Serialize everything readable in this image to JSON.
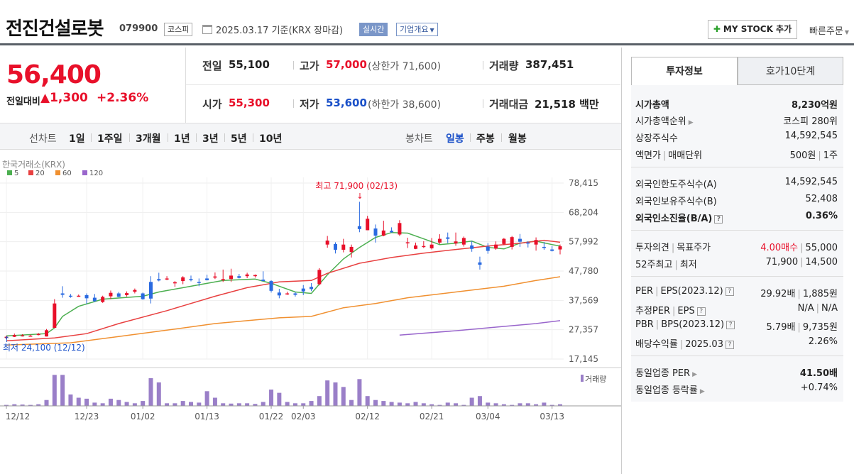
{
  "stock": {
    "name": "전진건설로봇",
    "code": "079900",
    "market": "코스피",
    "date": "2025.03.17 기준(KRX 장마감)",
    "realtime": "실시간",
    "company_overview": "기업개요",
    "my_stock": "MY STOCK 추가",
    "quick_order": "빠른주문"
  },
  "price": {
    "current": "56,400",
    "change_label": "전일대비",
    "change": "1,300",
    "change_pct": "+2.36%"
  },
  "info": {
    "prev_label": "전일",
    "prev": "55,100",
    "high_label": "고가",
    "high": "57,000",
    "upper_label": "상한가",
    "upper": "71,600",
    "volume_label": "거래량",
    "volume": "387,451",
    "open_label": "시가",
    "open": "55,300",
    "low_label": "저가",
    "low": "53,600",
    "lower_label": "하한가",
    "lower": "38,600",
    "amount_label": "거래대금",
    "amount": "21,518",
    "amount_unit": "백만"
  },
  "period": {
    "line_label": "선차트",
    "line_options": [
      "1일",
      "1주일",
      "3개월",
      "1년",
      "3년",
      "5년",
      "10년"
    ],
    "candle_label": "봉차트",
    "candle_options": [
      "일봉",
      "주봉",
      "월봉"
    ],
    "selected": "일봉"
  },
  "chart_data": {
    "type": "candlestick",
    "source": "한국거래소(KRX)",
    "ma_legend": [
      {
        "name": "5",
        "color": "#4caf50"
      },
      {
        "name": "20",
        "color": "#e84040"
      },
      {
        "name": "60",
        "color": "#f09030"
      },
      {
        "name": "120",
        "color": "#9966cc"
      }
    ],
    "x_ticks": [
      "12/12",
      "12/23",
      "01/02",
      "01/13",
      "01/22",
      "02/03",
      "02/12",
      "02/21",
      "03/04",
      "03/13"
    ],
    "y_ticks": [
      "78,415",
      "68,204",
      "57,992",
      "47,780",
      "37,569",
      "27,357",
      "17,145"
    ],
    "high_note": "최고 71,900 (02/13)",
    "low_note": "최저 24,100 (12/12)",
    "volume_label": "거래량",
    "candles": [
      [
        24600,
        25300,
        24100,
        24900
      ],
      [
        24900,
        26000,
        24800,
        25500
      ],
      [
        25300,
        25800,
        25000,
        25400
      ],
      [
        25200,
        25600,
        25000,
        25300
      ],
      [
        25500,
        26200,
        25400,
        25900
      ],
      [
        25000,
        27600,
        25000,
        27200
      ],
      [
        28000,
        38000,
        27900,
        36500
      ],
      [
        40000,
        42500,
        38500,
        39500
      ],
      [
        39200,
        39800,
        38500,
        39000
      ],
      [
        39100,
        39600,
        38800,
        39200
      ],
      [
        39400,
        40000,
        36300,
        38300
      ],
      [
        38500,
        39800,
        37000,
        37300
      ],
      [
        37000,
        39200,
        36700,
        38800
      ],
      [
        39000,
        41000,
        38000,
        40200
      ],
      [
        40000,
        40500,
        38700,
        38800
      ],
      [
        39400,
        40700,
        38900,
        40100
      ],
      [
        40600,
        41700,
        40000,
        41200
      ],
      [
        40000,
        40300,
        37800,
        38000
      ],
      [
        44000,
        46000,
        36500,
        38200
      ],
      [
        45000,
        47200,
        44200,
        44500
      ],
      [
        45000,
        46000,
        44600,
        45200
      ],
      [
        43500,
        44300,
        42300,
        43900
      ],
      [
        44300,
        46000,
        43200,
        45600
      ],
      [
        45000,
        46200,
        44200,
        44600
      ],
      [
        44000,
        45200,
        42500,
        43900
      ],
      [
        45200,
        46500,
        44500,
        44600
      ],
      [
        45500,
        47300,
        45000,
        45900
      ],
      [
        44600,
        48300,
        44000,
        45000
      ],
      [
        45000,
        48600,
        44000,
        46200
      ],
      [
        46000,
        46800,
        45200,
        45400
      ],
      [
        46000,
        47200,
        45300,
        46600
      ],
      [
        46000,
        46600,
        45500,
        46400
      ],
      [
        44800,
        47700,
        44600,
        44300
      ],
      [
        44300,
        44600,
        40300,
        40900
      ],
      [
        40300,
        41600,
        38300,
        39300
      ],
      [
        39800,
        40600,
        39500,
        40000
      ],
      [
        40000,
        40500,
        38900,
        39500
      ],
      [
        41700,
        42900,
        39400,
        40700
      ],
      [
        42300,
        43600,
        40800,
        41500
      ],
      [
        43200,
        48800,
        42800,
        48200
      ],
      [
        57000,
        60000,
        55900,
        58400
      ],
      [
        57200,
        57800,
        53900,
        55200
      ],
      [
        55200,
        59000,
        54300,
        57000
      ],
      [
        54400,
        57000,
        52500,
        56200
      ],
      [
        63400,
        71900,
        61300,
        62400
      ],
      [
        62000,
        67000,
        62000,
        66000
      ],
      [
        62600,
        64000,
        57700,
        60100
      ],
      [
        60100,
        65300,
        59900,
        61900
      ],
      [
        61800,
        63000,
        61100,
        61300
      ],
      [
        60500,
        65500,
        60000,
        64500
      ],
      [
        57800,
        59400,
        55800,
        57800
      ],
      [
        55500,
        57700,
        55400,
        56700
      ],
      [
        56500,
        58200,
        55800,
        56500
      ],
      [
        55700,
        59300,
        55300,
        57000
      ],
      [
        57700,
        60600,
        57200,
        59000
      ],
      [
        59500,
        61200,
        57500,
        59000
      ],
      [
        57400,
        61200,
        56600,
        58100
      ],
      [
        57000,
        59800,
        56300,
        59300
      ],
      [
        56700,
        58200,
        54500,
        55500
      ],
      [
        50800,
        52800,
        48300,
        50000
      ],
      [
        56300,
        57500,
        53800,
        54800
      ],
      [
        55600,
        58100,
        55200,
        57000
      ],
      [
        57200,
        59300,
        56800,
        59000
      ],
      [
        56200,
        60000,
        55300,
        59600
      ],
      [
        59000,
        60700,
        56200,
        58000
      ],
      [
        57700,
        58200,
        56000,
        57400
      ],
      [
        57000,
        59500,
        54900,
        58600
      ],
      [
        56200,
        57900,
        55200,
        56000
      ],
      [
        55300,
        56500,
        54600,
        54800
      ],
      [
        55300,
        57000,
        53600,
        56400
      ]
    ],
    "volumes": [
      3,
      5,
      4,
      3,
      5,
      18,
      95,
      95,
      35,
      25,
      22,
      10,
      8,
      22,
      18,
      12,
      8,
      15,
      85,
      72,
      8,
      8,
      15,
      12,
      10,
      45,
      25,
      8,
      7,
      8,
      8,
      6,
      12,
      50,
      40,
      12,
      8,
      8,
      15,
      30,
      78,
      72,
      58,
      18,
      82,
      30,
      18,
      15,
      12,
      10,
      8,
      12,
      8,
      5,
      3,
      10,
      8,
      3,
      25,
      30,
      10,
      8,
      5,
      3,
      8,
      8,
      5,
      10,
      3,
      5
    ],
    "ma": {
      "5": [
        [
          0,
          25200
        ],
        [
          5,
          26000
        ],
        [
          6,
          28000
        ],
        [
          7,
          32000
        ],
        [
          9,
          35500
        ],
        [
          12,
          38000
        ],
        [
          17,
          39000
        ],
        [
          19,
          40500
        ],
        [
          23,
          42500
        ],
        [
          27,
          44500
        ],
        [
          31,
          45000
        ],
        [
          33,
          43500
        ],
        [
          36,
          40500
        ],
        [
          38,
          40000
        ],
        [
          40,
          46500
        ],
        [
          42,
          52000
        ],
        [
          44,
          56000
        ],
        [
          46,
          59500
        ],
        [
          48,
          61200
        ],
        [
          50,
          61000
        ],
        [
          52,
          59000
        ],
        [
          54,
          57000
        ],
        [
          56,
          57500
        ],
        [
          58,
          58200
        ],
        [
          60,
          56000
        ],
        [
          62,
          55500
        ],
        [
          64,
          57500
        ],
        [
          66,
          58200
        ],
        [
          68,
          57000
        ],
        [
          69,
          56500
        ]
      ],
      "20": [
        [
          0,
          23500
        ],
        [
          6,
          24500
        ],
        [
          10,
          26000
        ],
        [
          14,
          29500
        ],
        [
          20,
          34000
        ],
        [
          26,
          39000
        ],
        [
          30,
          42000
        ],
        [
          34,
          44000
        ],
        [
          38,
          44500
        ],
        [
          40,
          47000
        ],
        [
          44,
          50500
        ],
        [
          48,
          52500
        ],
        [
          52,
          54000
        ],
        [
          56,
          55300
        ],
        [
          60,
          56500
        ],
        [
          64,
          57500
        ],
        [
          67,
          58500
        ],
        [
          69,
          57800
        ]
      ],
      "60": [
        [
          0,
          22000
        ],
        [
          8,
          22800
        ],
        [
          14,
          25000
        ],
        [
          20,
          27200
        ],
        [
          26,
          29500
        ],
        [
          30,
          30500
        ],
        [
          34,
          31500
        ],
        [
          38,
          32000
        ],
        [
          42,
          35000
        ],
        [
          46,
          36500
        ],
        [
          50,
          38500
        ],
        [
          56,
          40500
        ],
        [
          62,
          42500
        ],
        [
          66,
          44500
        ],
        [
          69,
          45800
        ]
      ],
      "120": [
        [
          49,
          25500
        ],
        [
          56,
          27000
        ],
        [
          62,
          28500
        ],
        [
          66,
          29500
        ],
        [
          69,
          30500
        ]
      ]
    },
    "ylim": [
      17145,
      78415
    ]
  },
  "tabs": {
    "invest": "투자정보",
    "hoga": "호가10단계"
  },
  "invest": {
    "cap_label": "시가총액",
    "cap": "8,230억원",
    "rank_label": "시가총액순위",
    "rank": "코스피 280위",
    "shares_label": "상장주식수",
    "shares": "14,592,545",
    "par_label": "액면가",
    "unit_label": "매매단위",
    "par": "500원",
    "unit": "1주",
    "foreign_limit_label": "외국인한도주식수(A)",
    "foreign_limit": "14,592,545",
    "foreign_hold_label": "외국인보유주식수(B)",
    "foreign_hold": "52,408",
    "foreign_ratio_label": "외국인소진율(B/A)",
    "foreign_ratio": "0.36%",
    "opinion_label": "투자의견",
    "target_label": "목표주가",
    "opinion": "4.00매수",
    "target": "55,000",
    "wk52_high_label": "52주최고",
    "wk52_low_label": "최저",
    "wk52_high": "71,900",
    "wk52_low": "14,500",
    "per_label": "PER",
    "eps_label": "EPS(2023.12)",
    "per": "29.92배",
    "eps": "1,885원",
    "est_per_label": "추정PER",
    "est_eps_label": "EPS",
    "est_per": "N/A",
    "est_eps": "N/A",
    "pbr_label": "PBR",
    "bps_label": "BPS(2023.12)",
    "pbr": "5.79배",
    "bps": "9,735원",
    "div_label": "배당수익률",
    "div_date": "2025.03",
    "div": "2.26%",
    "ind_per_label": "동일업종 PER",
    "ind_per": "41.50배",
    "ind_chg_label": "동일업종 등락률",
    "ind_chg": "+0.74%"
  }
}
